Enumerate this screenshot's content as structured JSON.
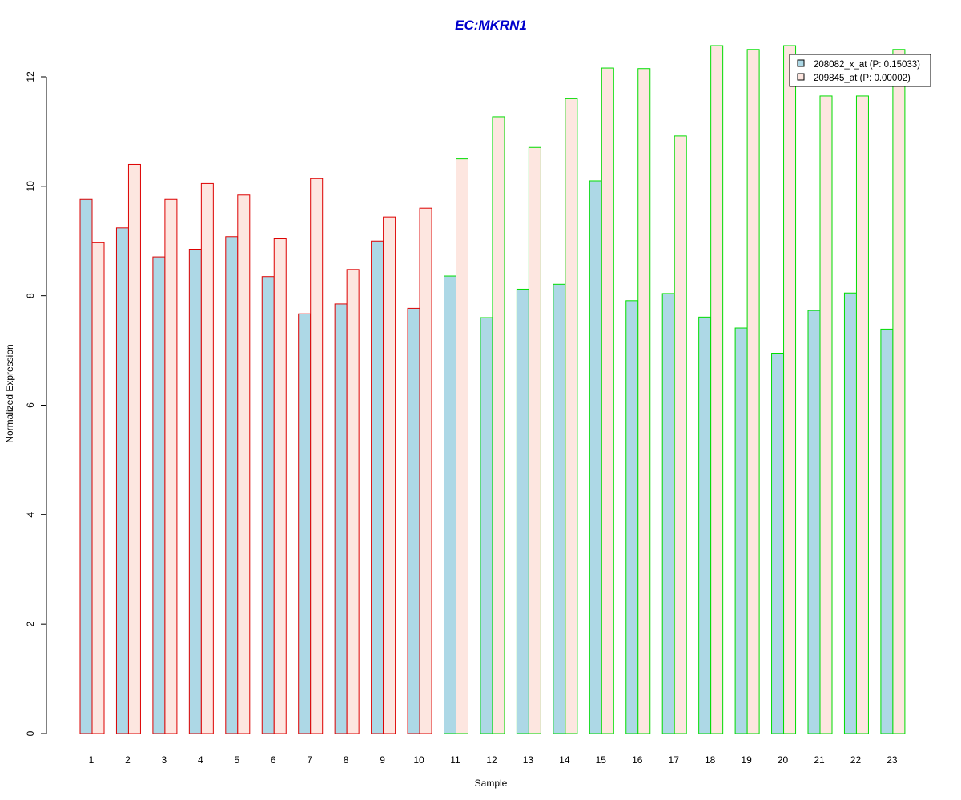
{
  "colors": {
    "title": "#0000CC",
    "series_fill_1": "#ADD8E6",
    "series_fill_2": "#FDE6E0",
    "group_a_border": "#DD0000",
    "group_b_border": "#00DD00"
  },
  "chart_data": {
    "type": "bar",
    "title": "EC:MKRN1",
    "xlabel": "Sample",
    "ylabel": "Normalized Expression",
    "ylim": [
      0,
      12.6
    ],
    "yticks": [
      0,
      2,
      4,
      6,
      8,
      10,
      12
    ],
    "grid": false,
    "legend_position": "top-right",
    "categories": [
      "1",
      "2",
      "3",
      "4",
      "5",
      "6",
      "7",
      "8",
      "9",
      "10",
      "11",
      "12",
      "13",
      "14",
      "15",
      "16",
      "17",
      "18",
      "19",
      "20",
      "21",
      "22",
      "23"
    ],
    "group_border": [
      "red",
      "red",
      "red",
      "red",
      "red",
      "red",
      "red",
      "red",
      "red",
      "red",
      "green",
      "green",
      "green",
      "green",
      "green",
      "green",
      "green",
      "green",
      "green",
      "green",
      "green",
      "green",
      "green"
    ],
    "series": [
      {
        "name": "208082_x_at (P: 0.15033)",
        "values": [
          9.76,
          9.24,
          8.71,
          8.85,
          9.08,
          8.35,
          7.67,
          7.85,
          9.0,
          7.77,
          8.36,
          7.6,
          8.12,
          8.21,
          10.1,
          7.91,
          8.04,
          7.61,
          7.41,
          6.95,
          7.73,
          8.05,
          7.39
        ]
      },
      {
        "name": "209845_at (P: 0.00002)",
        "values": [
          8.97,
          10.4,
          9.76,
          10.05,
          9.84,
          9.04,
          10.14,
          8.48,
          9.44,
          9.6,
          10.5,
          11.27,
          10.71,
          11.6,
          12.16,
          12.15,
          10.92,
          12.57,
          12.5,
          12.57,
          11.65,
          11.65,
          12.5
        ]
      }
    ]
  }
}
